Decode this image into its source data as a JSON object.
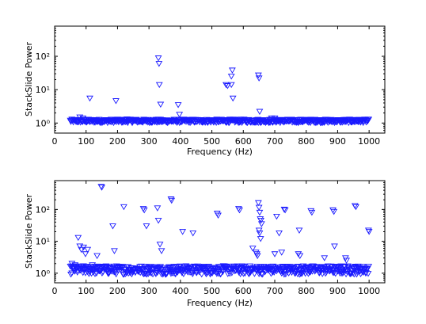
{
  "chart_data": [
    {
      "type": "scatter",
      "title": "",
      "xlabel": "Frequency (Hz)",
      "ylabel": "StackSlide Power",
      "xlim": [
        0,
        1050
      ],
      "ylim": [
        0.5,
        800
      ],
      "yscale": "log",
      "xticks": [
        0,
        100,
        200,
        300,
        400,
        500,
        600,
        700,
        800,
        900,
        1000
      ],
      "yticks": [
        1,
        10,
        100
      ],
      "ytick_labels": [
        "10⁰",
        "10¹",
        "10²"
      ],
      "marker": "triangle-down-open",
      "color": "#1a1aff",
      "grid": false,
      "band": {
        "x_start": 50,
        "x_end": 1000,
        "y_mean": 1.15,
        "y_spread": 0.12
      },
      "outliers": [
        [
          80,
          1.5
        ],
        [
          90,
          1.4
        ],
        [
          112,
          5.5
        ],
        [
          195,
          4.6
        ],
        [
          230,
          1.3
        ],
        [
          330,
          88
        ],
        [
          332,
          60
        ],
        [
          333,
          14
        ],
        [
          337,
          3.6
        ],
        [
          393,
          3.5
        ],
        [
          397,
          1.8
        ],
        [
          545,
          14
        ],
        [
          550,
          13
        ],
        [
          562,
          25
        ],
        [
          565,
          38
        ],
        [
          562,
          14
        ],
        [
          567,
          5.5
        ],
        [
          648,
          27
        ],
        [
          650,
          22
        ],
        [
          652,
          2.2
        ],
        [
          690,
          1.4
        ],
        [
          700,
          1.4
        ]
      ]
    },
    {
      "type": "scatter",
      "title": "",
      "xlabel": "Frequency (Hz)",
      "ylabel": "StackSlide Power",
      "xlim": [
        0,
        1050
      ],
      "ylim": [
        0.5,
        800
      ],
      "yscale": "log",
      "xticks": [
        0,
        100,
        200,
        300,
        400,
        500,
        600,
        700,
        800,
        900,
        1000
      ],
      "yticks": [
        1,
        10,
        100
      ],
      "ytick_labels": [
        "10⁰",
        "10¹",
        "10²"
      ],
      "marker": "triangle-down-open",
      "color": "#1a1aff",
      "grid": false,
      "band": {
        "x_start": 50,
        "x_end": 1000,
        "y_mean": 1.3,
        "y_spread": 0.3
      },
      "outliers": [
        [
          55,
          2
        ],
        [
          65,
          1.8
        ],
        [
          75,
          13
        ],
        [
          80,
          7
        ],
        [
          85,
          5.5
        ],
        [
          92,
          6.5
        ],
        [
          98,
          4
        ],
        [
          105,
          5.5
        ],
        [
          120,
          1.8
        ],
        [
          135,
          3.5
        ],
        [
          148,
          520
        ],
        [
          150,
          490
        ],
        [
          185,
          30
        ],
        [
          190,
          5
        ],
        [
          220,
          120
        ],
        [
          282,
          105
        ],
        [
          285,
          95
        ],
        [
          292,
          30
        ],
        [
          327,
          110
        ],
        [
          330,
          45
        ],
        [
          335,
          8
        ],
        [
          340,
          5
        ],
        [
          370,
          210
        ],
        [
          372,
          190
        ],
        [
          407,
          20
        ],
        [
          440,
          18
        ],
        [
          517,
          75
        ],
        [
          520,
          65
        ],
        [
          585,
          105
        ],
        [
          588,
          95
        ],
        [
          630,
          6
        ],
        [
          640,
          4.5
        ],
        [
          643,
          4
        ],
        [
          648,
          160
        ],
        [
          650,
          115
        ],
        [
          652,
          80
        ],
        [
          654,
          50
        ],
        [
          656,
          45
        ],
        [
          658,
          35
        ],
        [
          650,
          22
        ],
        [
          652,
          18
        ],
        [
          655,
          12
        ],
        [
          645,
          3.5
        ],
        [
          700,
          4
        ],
        [
          706,
          60
        ],
        [
          714,
          18
        ],
        [
          722,
          4.5
        ],
        [
          730,
          100
        ],
        [
          733,
          95
        ],
        [
          778,
          22
        ],
        [
          775,
          4
        ],
        [
          780,
          3.5
        ],
        [
          815,
          90
        ],
        [
          818,
          80
        ],
        [
          858,
          3
        ],
        [
          885,
          95
        ],
        [
          888,
          85
        ],
        [
          890,
          7
        ],
        [
          925,
          3
        ],
        [
          928,
          2.5
        ],
        [
          955,
          130
        ],
        [
          958,
          120
        ],
        [
          998,
          22
        ],
        [
          1000,
          20
        ]
      ]
    }
  ]
}
